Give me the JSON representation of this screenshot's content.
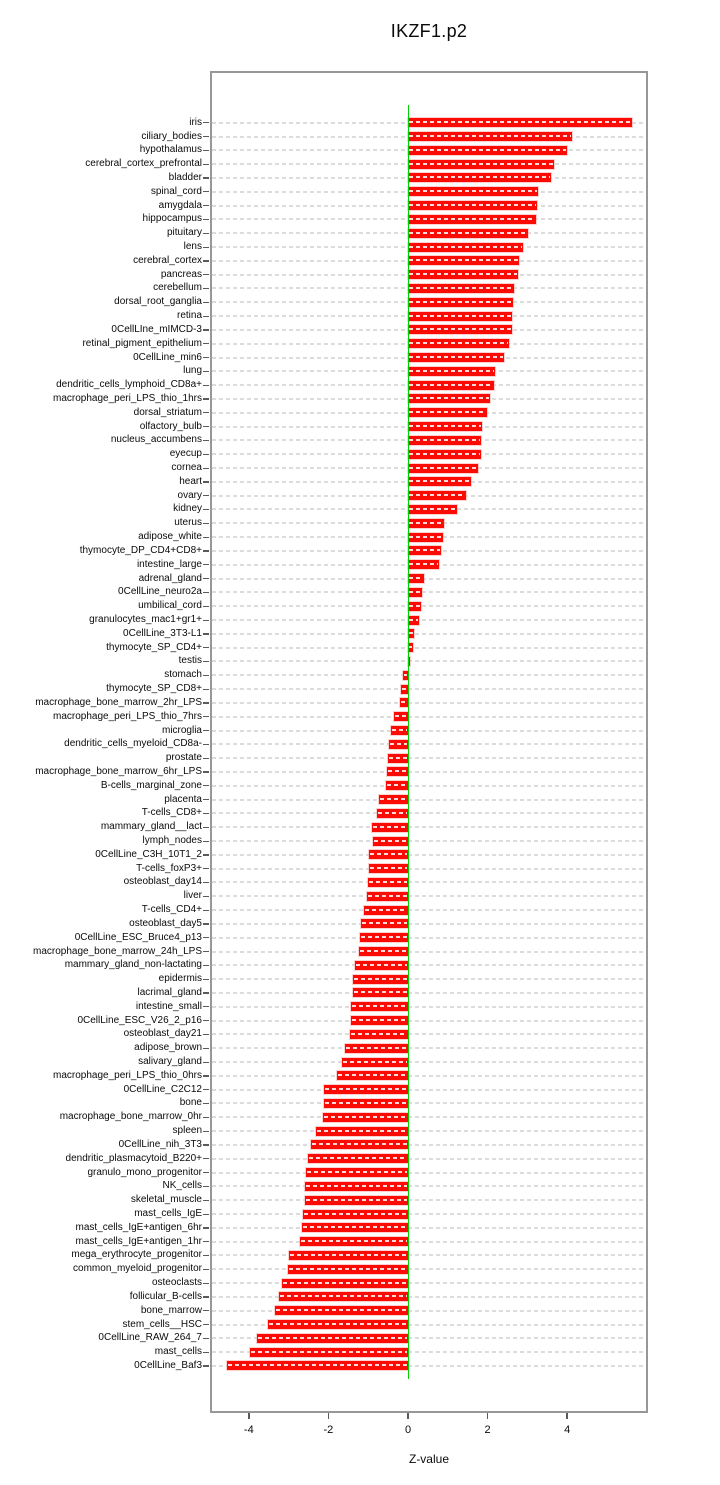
{
  "chart_data": {
    "type": "bar",
    "orientation": "horizontal",
    "title": "IKZF1.p2",
    "xlabel": "Z-value",
    "ylabel": "",
    "xlim": [
      -4.9,
      6.0
    ],
    "xticks": [
      -4,
      -2,
      0,
      2,
      4
    ],
    "grid": "dashed horizontal line per category, drawn light gray",
    "zero_line": true,
    "legend": "none",
    "colors": {
      "bar": "#fa0c05",
      "zero_line": "#00cf00",
      "grid": "#dcdcdc",
      "frame": "#979797",
      "text": "#000000"
    },
    "categories": [
      "iris",
      "ciliary_bodies",
      "hypothalamus",
      "cerebral_cortex_prefrontal",
      "bladder",
      "spinal_cord",
      "amygdala",
      "hippocampus",
      "pituitary",
      "lens",
      "cerebral_cortex",
      "pancreas",
      "cerebellum",
      "dorsal_root_ganglia",
      "retina",
      "0CellLIne_mIMCD-3",
      "retinal_pigment_epithelium",
      "0CellLine_min6",
      "lung",
      "dendritic_cells_lymphoid_CD8a+",
      "macrophage_peri_LPS_thio_1hrs",
      "dorsal_striatum",
      "olfactory_bulb",
      "nucleus_accumbens",
      "eyecup",
      "cornea",
      "heart",
      "ovary",
      "kidney",
      "uterus",
      "adipose_white",
      "thymocyte_DP_CD4+CD8+",
      "intestine_large",
      "adrenal_gland",
      "0CellLine_neuro2a",
      "umbilical_cord",
      "granulocytes_mac1+gr1+",
      "0CellLine_3T3-L1",
      "thymocyte_SP_CD4+",
      "testis",
      "stomach",
      "thymocyte_SP_CD8+",
      "macrophage_bone_marrow_2hr_LPS",
      "macrophage_peri_LPS_thio_7hrs",
      "microglia",
      "dendritic_cells_myeloid_CD8a-",
      "prostate",
      "macrophage_bone_marrow_6hr_LPS",
      "B-cells_marginal_zone",
      "placenta",
      "T-cells_CD8+",
      "mammary_gland__lact",
      "lymph_nodes",
      "0CellLine_C3H_10T1_2",
      "T-cells_foxP3+",
      "osteoblast_day14",
      "liver",
      "T-cells_CD4+",
      "osteoblast_day5",
      "0CellLine_ESC_Bruce4_p13",
      "macrophage_bone_marrow_24h_LPS",
      "mammary_gland_non-lactating",
      "epidermis",
      "lacrimal_gland",
      "intestine_small",
      "0CellLine_ESC_V26_2_p16",
      "osteoblast_day21",
      "adipose_brown",
      "salivary_gland",
      "macrophage_peri_LPS_thio_0hrs",
      "0CellLine_C2C12",
      "bone",
      "macrophage_bone_marrow_0hr",
      "spleen",
      "0CellLine_nih_3T3",
      "dendritic_plasmacytoid_B220+",
      "granulo_mono_progenitor",
      "NK_cells",
      "skeletal_muscle",
      "mast_cells_IgE",
      "mast_cells_IgE+antigen_6hr",
      "mast_cells_IgE+antigen_1hr",
      "mega_erythrocyte_progenitor",
      "common_myeloid_progenitor",
      "osteoclasts",
      "follicular_B-cells",
      "bone_marrow",
      "stem_cells__HSC",
      "0CellLine_RAW_264_7",
      "mast_cells",
      "0CellLine_Baf3"
    ],
    "values": [
      5.62,
      4.13,
      3.99,
      3.67,
      3.59,
      3.27,
      3.25,
      3.22,
      3.02,
      2.9,
      2.79,
      2.76,
      2.66,
      2.63,
      2.61,
      2.61,
      2.53,
      2.41,
      2.18,
      2.16,
      2.06,
      1.98,
      1.85,
      1.84,
      1.83,
      1.75,
      1.58,
      1.45,
      1.23,
      0.9,
      0.88,
      0.83,
      0.78,
      0.4,
      0.35,
      0.33,
      0.28,
      0.15,
      0.13,
      0.05,
      -0.12,
      -0.17,
      -0.2,
      -0.34,
      -0.43,
      -0.48,
      -0.5,
      -0.52,
      -0.55,
      -0.73,
      -0.79,
      -0.9,
      -0.89,
      -0.99,
      -0.99,
      -1.0,
      -1.04,
      -1.1,
      -1.19,
      -1.2,
      -1.23,
      -1.33,
      -1.37,
      -1.39,
      -1.43,
      -1.44,
      -1.45,
      -1.58,
      -1.67,
      -1.79,
      -2.1,
      -2.11,
      -2.14,
      -2.31,
      -2.44,
      -2.51,
      -2.56,
      -2.58,
      -2.6,
      -2.64,
      -2.66,
      -2.71,
      -3.0,
      -3.02,
      -3.17,
      -3.25,
      -3.35,
      -3.52,
      -3.79,
      -3.96,
      -4.55
    ]
  }
}
